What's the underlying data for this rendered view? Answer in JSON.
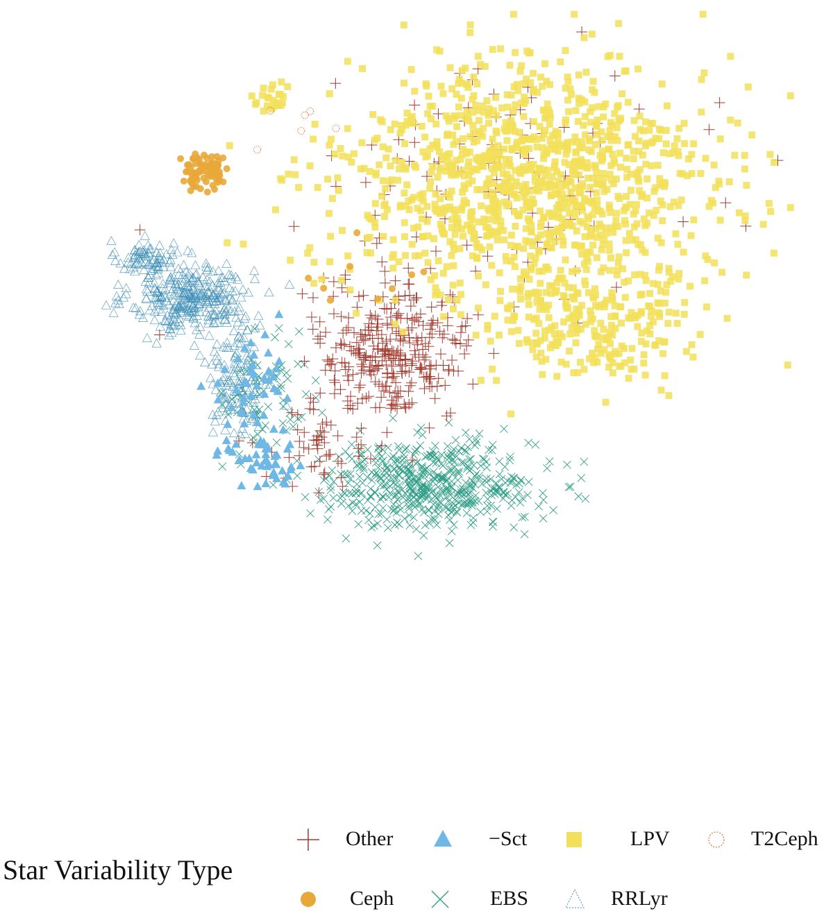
{
  "chart_data": {
    "type": "scatter",
    "title": "",
    "xlabel": "",
    "ylabel": "",
    "xlim": [
      -1,
      1
    ],
    "ylim": [
      -1,
      1
    ],
    "axes_visible": false,
    "grid": false,
    "legend_placement": "bottom",
    "legend_title": "Star Variability Type",
    "series": [
      {
        "name": "Other",
        "marker": "plus",
        "color": "#a33a2f",
        "clusters": [
          {
            "cx": -0.05,
            "cy": 0.05,
            "sx": 0.17,
            "sy": 0.16,
            "n": 320
          },
          {
            "cx": 0.25,
            "cy": 0.52,
            "sx": 0.38,
            "sy": 0.25,
            "n": 110
          },
          {
            "cx": -0.25,
            "cy": -0.23,
            "sx": 0.12,
            "sy": 0.1,
            "n": 45
          }
        ]
      },
      {
        "name": "−Sct",
        "marker": "triangle",
        "color": "#6fb7e4",
        "clusters": [
          {
            "cx": -0.42,
            "cy": -0.08,
            "sx": 0.07,
            "sy": 0.18,
            "n": 55
          },
          {
            "cx": -0.36,
            "cy": -0.26,
            "sx": 0.06,
            "sy": 0.07,
            "n": 35
          }
        ]
      },
      {
        "name": "LPV",
        "marker": "square",
        "color": "#f2e05a",
        "clusters": [
          {
            "cx": 0.3,
            "cy": 0.52,
            "sx": 0.4,
            "sy": 0.28,
            "n": 1150
          },
          {
            "cx": 0.48,
            "cy": 0.13,
            "sx": 0.22,
            "sy": 0.14,
            "n": 240
          },
          {
            "cx": -0.36,
            "cy": 0.74,
            "sx": 0.04,
            "sy": 0.03,
            "n": 22
          }
        ]
      },
      {
        "name": "T2Ceph",
        "marker": "circle-open",
        "color": "#e07840",
        "clusters": [
          {
            "cx": -0.28,
            "cy": 0.68,
            "sx": 0.1,
            "sy": 0.06,
            "n": 6
          }
        ]
      },
      {
        "name": "Ceph",
        "marker": "circle",
        "color": "#e8a838",
        "clusters": [
          {
            "cx": -0.53,
            "cy": 0.55,
            "sx": 0.05,
            "sy": 0.04,
            "n": 80
          },
          {
            "cx": -0.12,
            "cy": 0.27,
            "sx": 0.15,
            "sy": 0.08,
            "n": 9
          }
        ]
      },
      {
        "name": "EBS",
        "marker": "x",
        "color": "#2f9e86",
        "clusters": [
          {
            "cx": 0.05,
            "cy": -0.31,
            "sx": 0.23,
            "sy": 0.1,
            "n": 520
          },
          {
            "cx": -0.35,
            "cy": -0.07,
            "sx": 0.1,
            "sy": 0.14,
            "n": 70
          }
        ]
      },
      {
        "name": "RRLyr",
        "marker": "triangle-open",
        "color": "#3f8fb8",
        "clusters": [
          {
            "cx": -0.68,
            "cy": 0.31,
            "sx": 0.06,
            "sy": 0.04,
            "n": 75
          },
          {
            "cx": -0.56,
            "cy": 0.2,
            "sx": 0.13,
            "sy": 0.08,
            "n": 300
          },
          {
            "cx": -0.44,
            "cy": -0.02,
            "sx": 0.07,
            "sy": 0.14,
            "n": 140
          }
        ]
      }
    ]
  }
}
